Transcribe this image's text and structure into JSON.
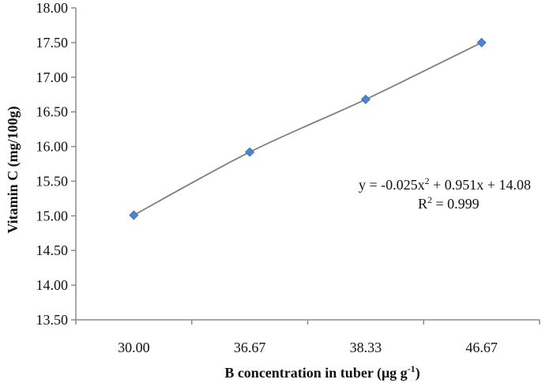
{
  "chart_data": {
    "type": "scatter",
    "title": "",
    "xlabel": "B  concentration in tuber (μg g",
    "xlabel_superscript": "-1",
    "xlabel_suffix": ")",
    "ylabel": "Vitamin C (mg/100g)",
    "categories": [
      "30.00",
      "36.67",
      "38.33",
      "46.67"
    ],
    "values": [
      15.01,
      15.92,
      16.68,
      17.5
    ],
    "ylim": [
      13.5,
      18.0
    ],
    "yticks": [
      "13.50",
      "14.00",
      "14.50",
      "15.00",
      "15.50",
      "16.00",
      "16.50",
      "17.00",
      "17.50",
      "18.00"
    ],
    "grid": false,
    "legend": "none",
    "trendline": {
      "type": "polynomial",
      "equation_parts": [
        "y = -0.025x",
        "2",
        " + 0.951x + 14.08"
      ],
      "r_squared_parts": [
        "R",
        "2",
        " = 0.999"
      ]
    },
    "colors": {
      "marker": "#4a86d0",
      "marker_stroke": "#3a6fb0",
      "trendline": "#7f7f7f",
      "axis": "#8c8c8c"
    }
  }
}
